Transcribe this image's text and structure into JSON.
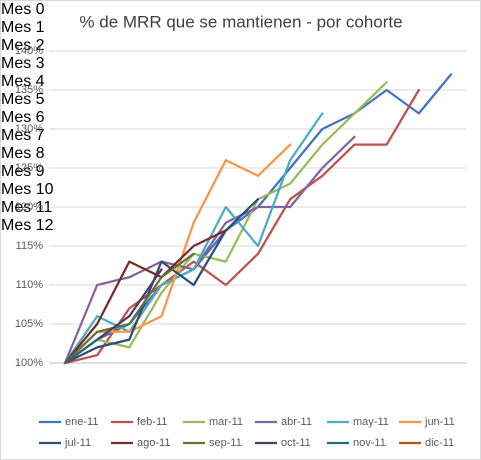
{
  "chart_data": {
    "type": "line",
    "title": "% de MRR que se mantienen - por cohorte",
    "categories": [
      "Mes 0",
      "Mes 1",
      "Mes 2",
      "Mes 3",
      "Mes 4",
      "Mes 5",
      "Mes 6",
      "Mes 7",
      "Mes 8",
      "Mes 9",
      "Mes 10",
      "Mes 11",
      "Mes 12"
    ],
    "ylim": [
      100,
      140
    ],
    "yticks": [
      {
        "value": 100,
        "label": "100%"
      },
      {
        "value": 105,
        "label": "105%"
      },
      {
        "value": 110,
        "label": "110%"
      },
      {
        "value": 115,
        "label": "115%"
      },
      {
        "value": 120,
        "label": "120%"
      },
      {
        "value": 125,
        "label": "125%"
      },
      {
        "value": 130,
        "label": "130%"
      },
      {
        "value": 135,
        "label": "135%"
      },
      {
        "value": 140,
        "label": "140%"
      }
    ],
    "grid": true,
    "legend": "bottom",
    "series": [
      {
        "name": "ene-11",
        "color": "#4472c4",
        "values": [
          100,
          103,
          105,
          110,
          112,
          117,
          120,
          125,
          130,
          132,
          135,
          132,
          137
        ]
      },
      {
        "name": "feb-11",
        "color": "#c0504d",
        "values": [
          100,
          101,
          107,
          110,
          113,
          110,
          114,
          121,
          124,
          128,
          128,
          135,
          null
        ]
      },
      {
        "name": "mar-11",
        "color": "#9bbb59",
        "values": [
          100,
          103,
          102,
          109,
          114,
          113,
          121,
          123,
          128,
          132,
          136,
          null,
          null
        ]
      },
      {
        "name": "abr-11",
        "color": "#8064a2",
        "values": [
          100,
          110,
          111,
          113,
          112,
          118,
          120,
          120,
          125,
          129,
          null,
          null,
          null
        ]
      },
      {
        "name": "may-11",
        "color": "#4bacc6",
        "values": [
          100,
          106,
          104,
          110,
          112,
          120,
          115,
          126,
          132,
          null,
          null,
          null,
          null
        ]
      },
      {
        "name": "jun-11",
        "color": "#f79646",
        "values": [
          100,
          104,
          104,
          106,
          118,
          126,
          124,
          128,
          null,
          null,
          null,
          null,
          null
        ]
      },
      {
        "name": "jul-11",
        "color": "#2c4d75",
        "values": [
          100,
          102,
          103,
          113,
          110,
          117,
          121,
          null,
          null,
          null,
          null,
          null,
          null
        ]
      },
      {
        "name": "ago-11",
        "color": "#772c2a",
        "values": [
          100,
          105,
          113,
          111,
          115,
          117,
          null,
          null,
          null,
          null,
          null,
          null,
          null
        ]
      },
      {
        "name": "sep-11",
        "color": "#5f7530",
        "values": [
          100,
          104,
          105,
          111,
          114,
          null,
          null,
          null,
          null,
          null,
          null,
          null,
          null
        ]
      },
      {
        "name": "oct-11",
        "color": "#4d3b62",
        "values": [
          100,
          103,
          106,
          112,
          null,
          null,
          null,
          null,
          null,
          null,
          null,
          null,
          null
        ]
      },
      {
        "name": "nov-11",
        "color": "#276a7c",
        "values": [
          100,
          103,
          null,
          null,
          null,
          null,
          null,
          null,
          null,
          null,
          null,
          null,
          null
        ]
      },
      {
        "name": "dic-11",
        "color": "#b65708",
        "values": [
          100,
          null,
          null,
          null,
          null,
          null,
          null,
          null,
          null,
          null,
          null,
          null,
          null
        ]
      }
    ]
  }
}
